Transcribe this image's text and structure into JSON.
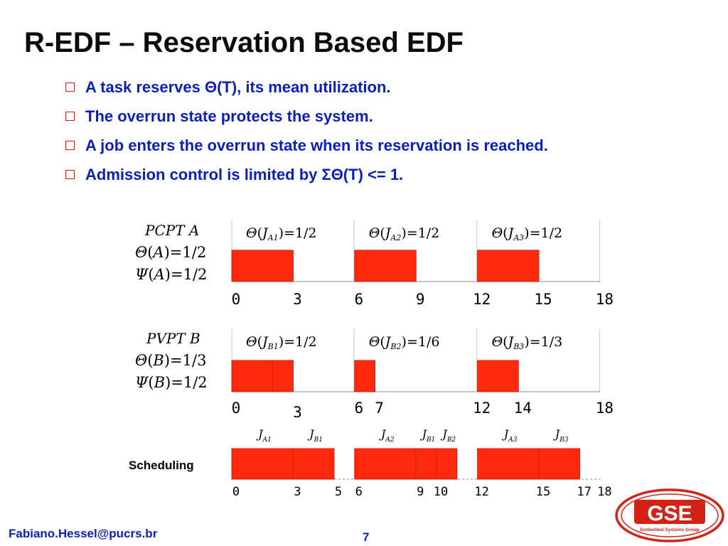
{
  "slide": {
    "title": "R-EDF – Reservation Based EDF",
    "bullets": [
      "A task reserves Θ(T), its mean utilization.",
      "The overrun state protects the system.",
      "A job enters the overrun state when its reservation is reached.",
      "Admission control is limited by ΣΘ(T) <= 1."
    ],
    "footer_email": "Fabiano.Hessel@pucrs.br",
    "page_number": "7",
    "logo": {
      "text": "GSE",
      "subtitle": "Embedded Systems Group"
    }
  },
  "colors": {
    "job_fill": "#ff2a0c",
    "job_stroke": "#cc1f10",
    "divider": "#c8c8c8",
    "baseline": "#888888",
    "logo_red": "#d42216",
    "bullet_text": "#0a1fb8",
    "bullet_box": "#e0200f"
  },
  "timeline_a": {
    "header": [
      "PCPT",
      "A"
    ],
    "params": [
      {
        "sym": "Θ",
        "arg": "A",
        "val": "1/2"
      },
      {
        "sym": "Ψ",
        "arg": "A",
        "val": "1/2"
      }
    ],
    "labels": [
      {
        "name": "A",
        "sub": "A1",
        "val": "1/2",
        "pos": 0
      },
      {
        "name": "A",
        "sub": "A2",
        "val": "1/2",
        "pos": 6
      },
      {
        "name": "A",
        "sub": "A3",
        "val": "1/2",
        "pos": 12
      }
    ],
    "bars": [
      {
        "start": 0,
        "end": 3
      },
      {
        "start": 6,
        "end": 9
      },
      {
        "start": 12,
        "end": 15
      }
    ],
    "ticks": [
      "0",
      "3",
      "6",
      "9",
      "12",
      "15",
      "18"
    ],
    "tick_values": [
      0,
      3,
      6,
      9,
      12,
      15,
      18
    ],
    "dividers": [
      6,
      12,
      18
    ]
  },
  "timeline_b": {
    "header": [
      "PVPT",
      "B"
    ],
    "params": [
      {
        "sym": "Θ",
        "arg": "B",
        "val": "1/3"
      },
      {
        "sym": "Ψ",
        "arg": "B",
        "val": "1/2"
      }
    ],
    "labels": [
      {
        "name": "B",
        "sub": "B1",
        "val": "1/2",
        "pos": 0
      },
      {
        "name": "B",
        "sub": "B2",
        "val": "1/6",
        "pos": 6
      },
      {
        "name": "B",
        "sub": "B3",
        "val": "1/3",
        "pos": 12
      }
    ],
    "bars": [
      {
        "start": 0,
        "end": 2
      },
      {
        "start": 2,
        "end": 3
      },
      {
        "start": 6,
        "end": 7
      },
      {
        "start": 12,
        "end": 14
      }
    ],
    "ticks": [
      "0",
      "3",
      "6",
      "7",
      "12",
      "14",
      "18"
    ],
    "tick_values": [
      0,
      3,
      6,
      7,
      12,
      14,
      18
    ],
    "dividers": [
      6,
      12,
      18
    ]
  },
  "scheduling": {
    "label": "Scheduling",
    "jobs": [
      {
        "name": "J",
        "sub": "A1",
        "start": 0,
        "end": 3
      },
      {
        "name": "J",
        "sub": "B1",
        "start": 3,
        "end": 5
      },
      {
        "name": "J",
        "sub": "A2",
        "start": 6,
        "end": 9
      },
      {
        "name": "J",
        "sub": "B1",
        "start": 9,
        "end": 10
      },
      {
        "name": "J",
        "sub": "B2",
        "start": 10,
        "end": 11
      },
      {
        "name": "J",
        "sub": "A3",
        "start": 12,
        "end": 15
      },
      {
        "name": "J",
        "sub": "B3",
        "start": 15,
        "end": 17
      }
    ],
    "ticks": [
      "0",
      "3",
      "5",
      "6",
      "9",
      "10",
      "12",
      "15",
      "17",
      "18"
    ],
    "tick_values": [
      0,
      3,
      5,
      6,
      9,
      10,
      12,
      15,
      17,
      18
    ]
  }
}
